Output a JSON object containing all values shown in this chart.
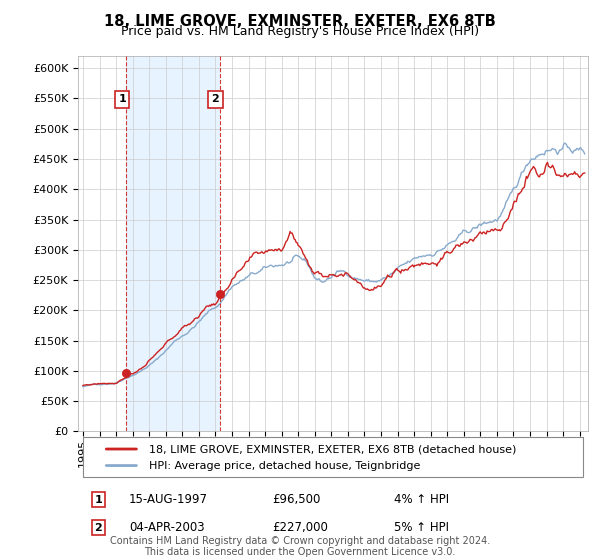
{
  "title": "18, LIME GROVE, EXMINSTER, EXETER, EX6 8TB",
  "subtitle": "Price paid vs. HM Land Registry's House Price Index (HPI)",
  "ylabel_ticks": [
    "£0",
    "£50K",
    "£100K",
    "£150K",
    "£200K",
    "£250K",
    "£300K",
    "£350K",
    "£400K",
    "£450K",
    "£500K",
    "£550K",
    "£600K"
  ],
  "ytick_values": [
    0,
    50000,
    100000,
    150000,
    200000,
    250000,
    300000,
    350000,
    400000,
    450000,
    500000,
    550000,
    600000
  ],
  "ylim": [
    0,
    620000
  ],
  "xlim_start": 1994.7,
  "xlim_end": 2025.5,
  "sale1_year": 1997.62,
  "sale1_price": 96500,
  "sale1_label": "1",
  "sale1_date": "15-AUG-1997",
  "sale1_hpi": "4% ↑ HPI",
  "sale2_year": 2003.25,
  "sale2_price": 227000,
  "sale2_label": "2",
  "sale2_date": "04-APR-2003",
  "sale2_hpi": "5% ↑ HPI",
  "line_color_red": "#cc2222",
  "line_color_blue": "#88aacc",
  "shade_color": "#ddeeff",
  "vline_color": "#cc2222",
  "background_color": "#ffffff",
  "grid_color": "#cccccc",
  "legend_label_red": "18, LIME GROVE, EXMINSTER, EXETER, EX6 8TB (detached house)",
  "legend_label_blue": "HPI: Average price, detached house, Teignbridge",
  "footer": "Contains HM Land Registry data © Crown copyright and database right 2024.\nThis data is licensed under the Open Government Licence v3.0.",
  "title_fontsize": 10.5,
  "subtitle_fontsize": 9,
  "tick_fontsize": 8,
  "legend_fontsize": 8,
  "footer_fontsize": 7
}
